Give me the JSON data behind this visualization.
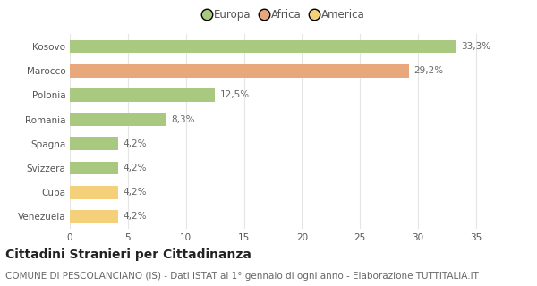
{
  "categories": [
    "Kosovo",
    "Marocco",
    "Polonia",
    "Romania",
    "Spagna",
    "Svizzera",
    "Cuba",
    "Venezuela"
  ],
  "values": [
    33.3,
    29.2,
    12.5,
    8.3,
    4.2,
    4.2,
    4.2,
    4.2
  ],
  "labels": [
    "33,3%",
    "29,2%",
    "12,5%",
    "8,3%",
    "4,2%",
    "4,2%",
    "4,2%",
    "4,2%"
  ],
  "colors": [
    "#a8c97f",
    "#e8a87c",
    "#a8c97f",
    "#a8c97f",
    "#a8c97f",
    "#a8c97f",
    "#f5d07a",
    "#f5d07a"
  ],
  "legend_items": [
    {
      "label": "Europa",
      "color": "#a8c97f"
    },
    {
      "label": "Africa",
      "color": "#e8a87c"
    },
    {
      "label": "America",
      "color": "#f5d07a"
    }
  ],
  "xlim": [
    0,
    37
  ],
  "xticks": [
    0,
    5,
    10,
    15,
    20,
    25,
    30,
    35
  ],
  "title": "Cittadini Stranieri per Cittadinanza",
  "subtitle": "COMUNE DI PESCOLANCIANO (IS) - Dati ISTAT al 1° gennaio di ogni anno - Elaborazione TUTTITALIA.IT",
  "background_color": "#ffffff",
  "grid_color": "#e5e5e5",
  "bar_height": 0.55,
  "title_fontsize": 10,
  "subtitle_fontsize": 7.5,
  "label_fontsize": 7.5,
  "tick_fontsize": 7.5,
  "legend_fontsize": 8.5
}
